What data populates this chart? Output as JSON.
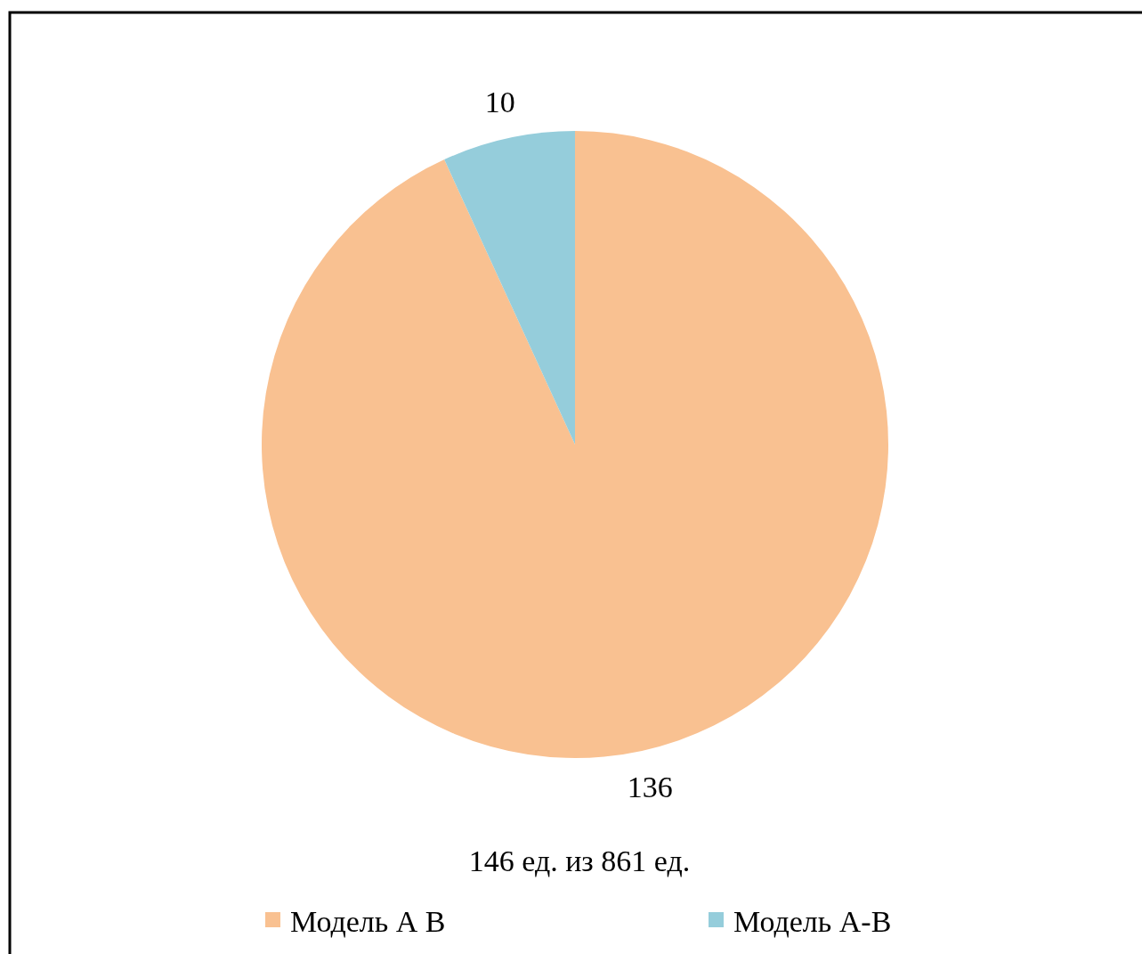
{
  "chart_data": {
    "type": "pie",
    "categories": [
      "Модель А В",
      "Модель А-В"
    ],
    "values": [
      136,
      10
    ],
    "colors": [
      "#f9c191",
      "#95cddb"
    ],
    "data_labels": true,
    "legend": "bottom",
    "annotations": [
      "146 ед. из 861 ед."
    ]
  }
}
